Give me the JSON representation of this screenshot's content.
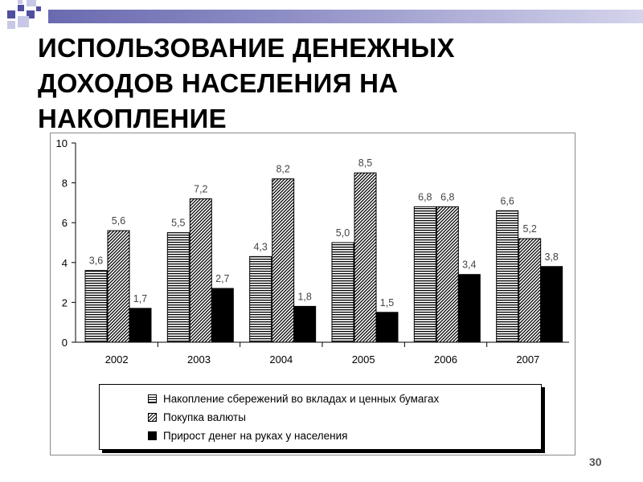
{
  "slide": {
    "title": "ИСПОЛЬЗОВАНИЕ ДЕНЕЖНЫХ ДОХОДОВ НАСЕЛЕНИЯ НА НАКОПЛЕНИЕ",
    "page_number": "30",
    "accent_colors": [
      "#4f4f9f",
      "#c8c8e6"
    ]
  },
  "chart_data": {
    "type": "bar",
    "categories": [
      "2002",
      "2003",
      "2004",
      "2005",
      "2006",
      "2007"
    ],
    "series": [
      {
        "name": "Накопление сбережений во вкладах и ценных бумагах",
        "values": [
          3.6,
          5.5,
          4.3,
          5.0,
          6.8,
          6.6
        ],
        "labels": [
          "3,6",
          "5,5",
          "4,3",
          "5,0",
          "6,8",
          "6,6"
        ],
        "fill": "horizontal-stripes"
      },
      {
        "name": "Покупка валюты",
        "values": [
          5.6,
          7.2,
          8.2,
          8.5,
          6.8,
          5.2
        ],
        "labels": [
          "5,6",
          "7,2",
          "8,2",
          "8,5",
          "6,8",
          "5,2"
        ],
        "fill": "diagonal-hatch"
      },
      {
        "name": "Прирост денег на руках у населения",
        "values": [
          1.7,
          2.7,
          1.8,
          1.5,
          3.4,
          3.8
        ],
        "labels": [
          "1,7",
          "2,7",
          "1,8",
          "1,5",
          "3,4",
          "3,8"
        ],
        "fill": "solid-black"
      }
    ],
    "title": "",
    "xlabel": "",
    "ylabel": "",
    "ylim": [
      0,
      10
    ],
    "yticks": [
      "0",
      "2",
      "4",
      "6",
      "8",
      "10"
    ],
    "grid": false,
    "legend_position": "bottom"
  }
}
